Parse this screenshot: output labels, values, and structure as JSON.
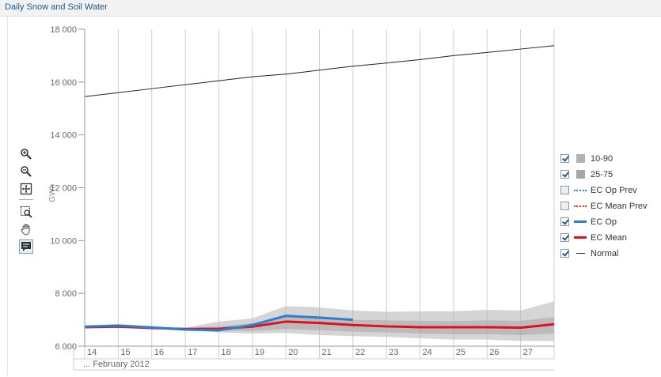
{
  "header": {
    "title": "Daily Snow and Soil Water"
  },
  "toolbar": {
    "tools": [
      {
        "icon": "zoom-in-icon"
      },
      {
        "icon": "zoom-out-icon"
      },
      {
        "icon": "zoom-fit-icon"
      },
      {
        "icon": "zoom-box-icon"
      },
      {
        "icon": "pan-hand-icon"
      },
      {
        "icon": "tooltip-icon"
      }
    ]
  },
  "legend": {
    "items": [
      {
        "label": "10-90",
        "checked": true,
        "symbol": "area",
        "color": "#b3b3b3"
      },
      {
        "label": "25-75",
        "checked": true,
        "symbol": "area",
        "color": "#a6a6a6"
      },
      {
        "label": "EC Op Prev",
        "checked": false,
        "symbol": "dotted",
        "color": "#2a7fd4"
      },
      {
        "label": "EC Mean Prev",
        "checked": false,
        "symbol": "dotted",
        "color": "#e0301e"
      },
      {
        "label": "EC Op",
        "checked": true,
        "symbol": "line",
        "color": "#2a7fd4"
      },
      {
        "label": "EC Mean",
        "checked": true,
        "symbol": "line",
        "color": "#e0101e"
      },
      {
        "label": "Normal",
        "checked": true,
        "symbol": "thin",
        "color": "#222222"
      }
    ]
  },
  "chart_data": {
    "type": "line",
    "title": "",
    "xlabel": "... February 2012",
    "ylabel": "GWh",
    "xlim": [
      14,
      28
    ],
    "ylim": [
      6000,
      18000
    ],
    "x_ticks": [
      14,
      15,
      16,
      17,
      18,
      19,
      20,
      21,
      22,
      23,
      24,
      25,
      26,
      27
    ],
    "y_ticks": [
      6000,
      8000,
      10000,
      12000,
      14000,
      16000,
      18000
    ],
    "y_tick_labels": [
      "6 000",
      "8 000",
      "10 000",
      "12 000",
      "14 000",
      "16 000",
      "18 000"
    ],
    "grid": true,
    "legend_position": "right",
    "series": [
      {
        "name": "Normal",
        "color": "#222222",
        "x": [
          14,
          15,
          16,
          17,
          18,
          19,
          20,
          21,
          22,
          23,
          24,
          25,
          26,
          27,
          28
        ],
        "values": [
          15450,
          15600,
          15750,
          15900,
          16050,
          16200,
          16300,
          16450,
          16600,
          16720,
          16850,
          17000,
          17120,
          17250,
          17380
        ]
      },
      {
        "name": "EC Mean",
        "color": "#e0101e",
        "x": [
          14,
          15,
          16,
          17,
          18,
          19,
          20,
          21,
          22,
          23,
          24,
          25,
          26,
          27,
          28
        ],
        "values": [
          6720,
          6740,
          6690,
          6650,
          6660,
          6740,
          6930,
          6880,
          6800,
          6750,
          6720,
          6720,
          6720,
          6700,
          6830
        ]
      },
      {
        "name": "EC Op",
        "color": "#2a7fd4",
        "x": [
          14,
          15,
          16,
          17,
          18,
          19,
          20,
          21,
          22
        ],
        "values": [
          6740,
          6780,
          6710,
          6630,
          6600,
          6800,
          7150,
          7080,
          7000
        ]
      }
    ],
    "bands": [
      {
        "name": "10-90",
        "color": "#b3b3b3",
        "x": [
          14,
          15,
          16,
          17,
          18,
          19,
          20,
          21,
          22,
          23,
          24,
          25,
          26,
          27,
          28
        ],
        "low": [
          6700,
          6700,
          6650,
          6620,
          6520,
          6480,
          6500,
          6420,
          6380,
          6350,
          6300,
          6250,
          6250,
          6200,
          6200
        ],
        "high": [
          6720,
          6740,
          6700,
          6700,
          6930,
          7050,
          7520,
          7470,
          7350,
          7300,
          7320,
          7320,
          7380,
          7350,
          7700
        ]
      },
      {
        "name": "25-75",
        "color": "#a6a6a6",
        "x": [
          14,
          15,
          16,
          17,
          18,
          19,
          20,
          21,
          22,
          23,
          24,
          25,
          26,
          27,
          28
        ],
        "low": [
          6710,
          6720,
          6670,
          6640,
          6580,
          6580,
          6650,
          6600,
          6550,
          6520,
          6480,
          6450,
          6450,
          6420,
          6480
        ],
        "high": [
          6720,
          6730,
          6690,
          6680,
          6750,
          6870,
          7150,
          7080,
          7000,
          6980,
          6960,
          6950,
          6980,
          6960,
          7100
        ]
      }
    ]
  }
}
